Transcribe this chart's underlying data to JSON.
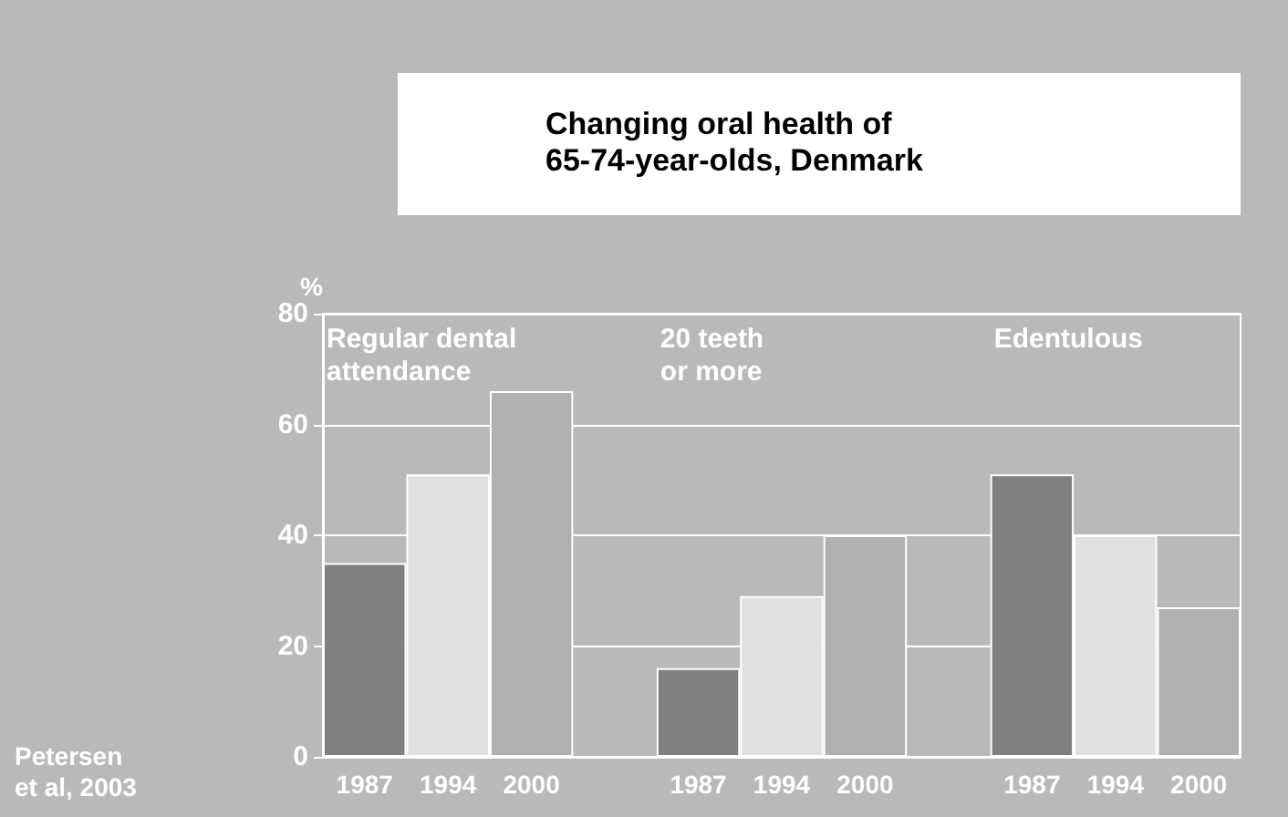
{
  "chart_data": {
    "type": "bar",
    "title": "Changing oral health of\n65-74-year-olds, Denmark",
    "ylabel": "%",
    "categories": [
      "1987",
      "1994",
      "2000",
      null,
      "1987",
      "1994",
      "2000",
      null,
      "1987",
      "1994",
      "2000"
    ],
    "values": [
      35,
      51,
      66,
      null,
      16,
      29,
      40,
      null,
      51,
      40,
      27
    ],
    "colors": [
      "#808080",
      "#e0e0e0",
      "#b0b0b0",
      null,
      "#808080",
      "#e0e0e0",
      "#b0b0b0",
      null,
      "#808080",
      "#e0e0e0",
      "#b0b0b0"
    ],
    "ylim": [
      0,
      80
    ],
    "yticks": [
      0,
      20,
      40,
      60,
      80
    ],
    "grid": "y",
    "annotations": [
      "Regular dental\nattendance",
      "20 teeth\nor more",
      "Edentulous",
      "Petersen\net al, 2003"
    ]
  }
}
